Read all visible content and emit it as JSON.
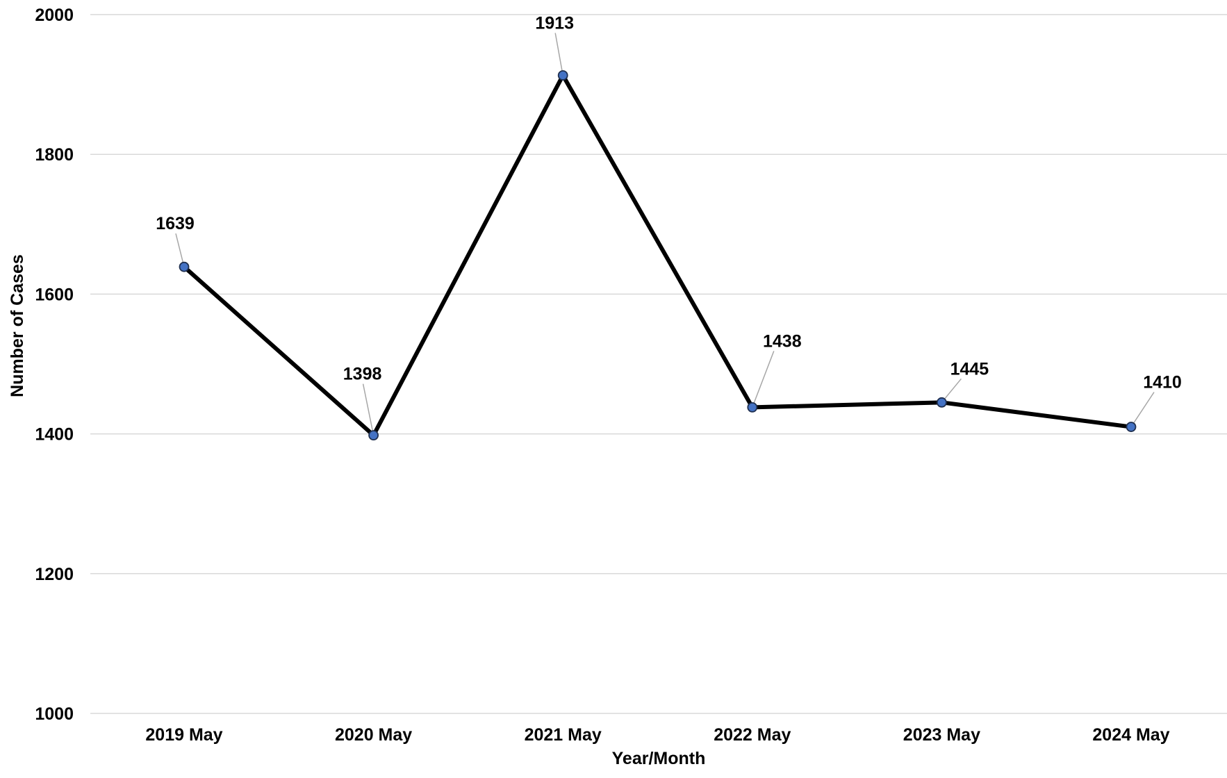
{
  "chart_data": {
    "type": "line",
    "title": "",
    "xlabel": "Year/Month",
    "ylabel": "Number of Cases",
    "categories": [
      "2019 May",
      "2020 May",
      "2021 May",
      "2022 May",
      "2023 May",
      "2024 May"
    ],
    "series": [
      {
        "values": [
          1639,
          1398,
          1913,
          1438,
          1445,
          1410
        ]
      }
    ],
    "data_labels": [
      "1639",
      "1398",
      "1913",
      "1438",
      "1445",
      "1410"
    ],
    "ylim": [
      1000,
      2000
    ],
    "y_ticks": [
      1000,
      1200,
      1400,
      1600,
      1800,
      2000
    ],
    "y_tick_labels": [
      "1000",
      "1200",
      "1400",
      "1600",
      "1800",
      "2000"
    ],
    "grid": "horizontal",
    "legend": "none",
    "colors": {
      "line": "#000000",
      "marker_fill": "#4472c4",
      "marker_stroke": "#1f2f4f",
      "gridline": "#d9d9d9",
      "leader_line": "#a6a6a6"
    }
  }
}
